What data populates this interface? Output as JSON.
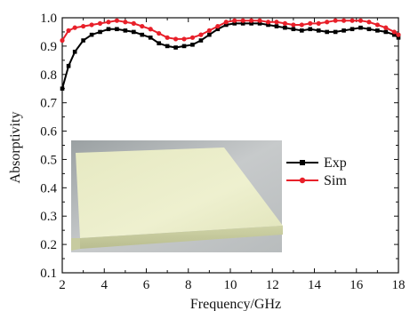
{
  "chart_data": {
    "type": "line",
    "title": "",
    "xlabel": "Frequency/GHz",
    "ylabel": "Absorptivity",
    "xlim": [
      2,
      18
    ],
    "ylim": [
      0.1,
      1.0
    ],
    "xticks": [
      "2",
      "4",
      "6",
      "8",
      "10",
      "12",
      "14",
      "16",
      "18"
    ],
    "yticks": [
      "0.1",
      "0.2",
      "0.3",
      "0.4",
      "0.5",
      "0.6",
      "0.7",
      "0.8",
      "0.9",
      "1.0"
    ],
    "grid": false,
    "legend_position": "middle-right",
    "series": [
      {
        "name": "Exp",
        "color": "#000000",
        "marker": "square",
        "x": [
          2.0,
          2.3,
          2.6,
          3.0,
          3.4,
          3.8,
          4.2,
          4.6,
          5.0,
          5.4,
          5.8,
          6.2,
          6.6,
          7.0,
          7.4,
          7.8,
          8.2,
          8.6,
          9.0,
          9.4,
          9.8,
          10.2,
          10.6,
          11.0,
          11.4,
          11.8,
          12.2,
          12.6,
          13.0,
          13.4,
          13.8,
          14.2,
          14.6,
          15.0,
          15.4,
          15.8,
          16.2,
          16.6,
          17.0,
          17.4,
          17.8,
          18.0
        ],
        "y": [
          0.75,
          0.83,
          0.88,
          0.92,
          0.94,
          0.95,
          0.96,
          0.96,
          0.955,
          0.95,
          0.94,
          0.93,
          0.91,
          0.9,
          0.895,
          0.9,
          0.905,
          0.92,
          0.94,
          0.96,
          0.975,
          0.98,
          0.98,
          0.98,
          0.98,
          0.975,
          0.97,
          0.965,
          0.96,
          0.955,
          0.96,
          0.955,
          0.95,
          0.95,
          0.955,
          0.96,
          0.965,
          0.96,
          0.955,
          0.95,
          0.94,
          0.93
        ]
      },
      {
        "name": "Sim",
        "color": "#e8202a",
        "marker": "circle",
        "x": [
          2.0,
          2.3,
          2.6,
          3.0,
          3.4,
          3.8,
          4.2,
          4.6,
          5.0,
          5.4,
          5.8,
          6.2,
          6.6,
          7.0,
          7.4,
          7.8,
          8.2,
          8.6,
          9.0,
          9.4,
          9.8,
          10.2,
          10.6,
          11.0,
          11.4,
          11.8,
          12.2,
          12.6,
          13.0,
          13.4,
          13.8,
          14.2,
          14.6,
          15.0,
          15.4,
          15.8,
          16.2,
          16.6,
          17.0,
          17.4,
          17.8,
          18.0
        ],
        "y": [
          0.92,
          0.955,
          0.965,
          0.97,
          0.975,
          0.98,
          0.985,
          0.99,
          0.985,
          0.98,
          0.97,
          0.96,
          0.945,
          0.93,
          0.925,
          0.925,
          0.93,
          0.94,
          0.955,
          0.97,
          0.985,
          0.99,
          0.99,
          0.99,
          0.99,
          0.985,
          0.985,
          0.98,
          0.975,
          0.975,
          0.98,
          0.98,
          0.985,
          0.99,
          0.99,
          0.99,
          0.99,
          0.985,
          0.975,
          0.965,
          0.95,
          0.94
        ]
      }
    ]
  },
  "photo": {
    "content": "inset photograph of absorber sample panel"
  }
}
